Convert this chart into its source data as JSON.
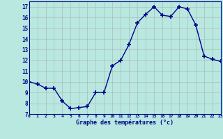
{
  "x": [
    0,
    1,
    2,
    3,
    4,
    5,
    6,
    7,
    8,
    9,
    10,
    11,
    12,
    13,
    14,
    15,
    16,
    17,
    18,
    19,
    20,
    21,
    22,
    23
  ],
  "y": [
    10.0,
    9.8,
    9.4,
    9.4,
    8.2,
    7.5,
    7.6,
    7.7,
    9.0,
    9.0,
    11.5,
    12.0,
    13.5,
    15.5,
    16.3,
    17.0,
    16.2,
    16.1,
    17.0,
    16.8,
    15.3,
    12.4,
    12.1,
    11.9
  ],
  "xlim": [
    0,
    23
  ],
  "ylim": [
    7,
    17.5
  ],
  "yticks": [
    7,
    8,
    9,
    10,
    11,
    12,
    13,
    14,
    15,
    16,
    17
  ],
  "xticks": [
    0,
    1,
    2,
    3,
    4,
    5,
    6,
    7,
    8,
    9,
    10,
    11,
    12,
    13,
    14,
    15,
    16,
    17,
    18,
    19,
    20,
    21,
    22,
    23
  ],
  "xlabel": "Graphe des températures (°c)",
  "line_color": "#00008b",
  "marker": "+",
  "marker_size": 4.0,
  "bg_color": "#b8e8e0",
  "grid_color": "#aaaaaa",
  "axis_label_color": "#00008b",
  "tick_label_color": "#00008b"
}
